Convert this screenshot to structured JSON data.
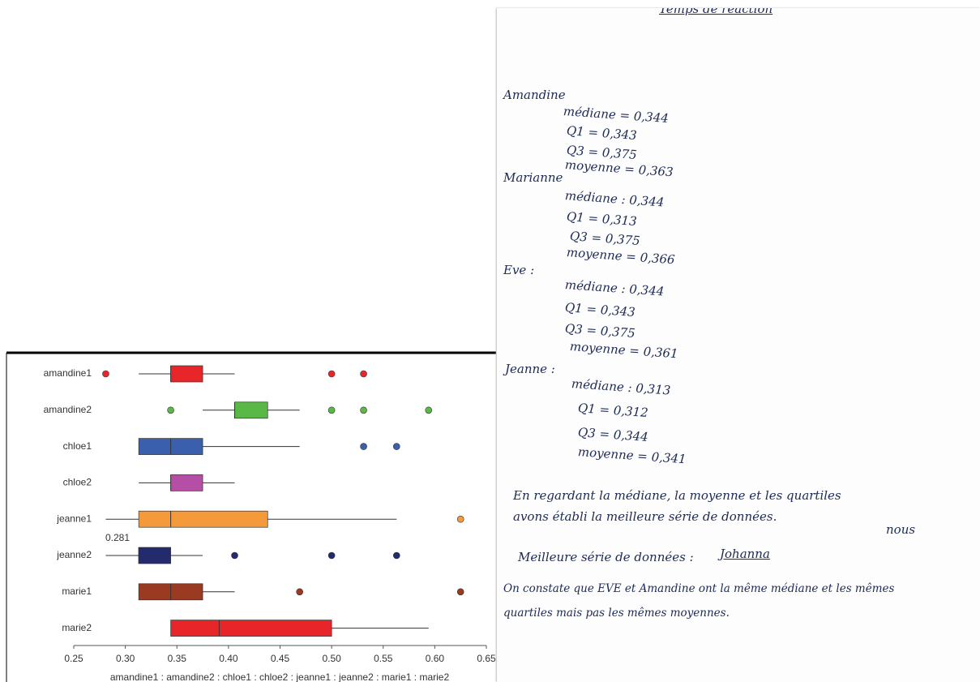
{
  "chart_data": {
    "type": "boxplot",
    "categories": [
      "amandine1",
      "amandine2",
      "chloe1",
      "chloe2",
      "jeanne1",
      "jeanne2",
      "marie1",
      "marie2"
    ],
    "boxes": [
      {
        "whislo": 0.313,
        "q1": 0.344,
        "med": 0.344,
        "q3": 0.375,
        "whishi": 0.406,
        "fliers": [
          0.281,
          0.5,
          0.531
        ],
        "color": "#e8262a"
      },
      {
        "whislo": 0.375,
        "q1": 0.406,
        "med": 0.406,
        "q3": 0.438,
        "whishi": 0.469,
        "fliers": [
          0.344,
          0.5,
          0.531,
          0.594
        ],
        "color": "#5ab946"
      },
      {
        "whislo": 0.313,
        "q1": 0.313,
        "med": 0.344,
        "q3": 0.375,
        "whishi": 0.469,
        "fliers": [
          0.531,
          0.563
        ],
        "color": "#3a5fad"
      },
      {
        "whislo": 0.313,
        "q1": 0.344,
        "med": 0.344,
        "q3": 0.375,
        "whishi": 0.406,
        "fliers": [],
        "color": "#b44fa5"
      },
      {
        "whislo": 0.281,
        "q1": 0.313,
        "med": 0.344,
        "q3": 0.438,
        "whishi": 0.563,
        "fliers": [
          0.625
        ],
        "color": "#f49a3a"
      },
      {
        "whislo": 0.281,
        "q1": 0.313,
        "med": 0.313,
        "q3": 0.344,
        "whishi": 0.375,
        "fliers": [
          0.406,
          0.5,
          0.563
        ],
        "color": "#232a6e"
      },
      {
        "whislo": 0.313,
        "q1": 0.313,
        "med": 0.344,
        "q3": 0.375,
        "whishi": 0.406,
        "fliers": [
          0.469,
          0.625
        ],
        "color": "#9b3a22"
      },
      {
        "whislo": 0.344,
        "q1": 0.344,
        "med": 0.391,
        "q3": 0.5,
        "whishi": 0.594,
        "fliers": [],
        "color": "#e8262a"
      }
    ],
    "annotation": "0.281",
    "xlim": [
      0.25,
      0.65
    ],
    "xticks": [
      0.25,
      {
        "value": 0.3,
        "label": "0.30"
      },
      0.35,
      {
        "value": 0.4,
        "label": "0.40"
      },
      0.45,
      {
        "value": 0.5,
        "label": "0.50"
      },
      0.55,
      {
        "value": 0.6,
        "label": "0.60"
      },
      0.65
    ],
    "x_label": "amandine1 : amandine2 : chloe1 : chloe2 : jeanne1 : jeanne2 : marie1 : marie2"
  },
  "notes": {
    "title": "Temps de reaction",
    "entries": [
      {
        "name": "Amandine",
        "lines": [
          "médiane = 0,344",
          "Q1 = 0,343",
          "Q3 = 0,375",
          "moyenne = 0,363"
        ]
      },
      {
        "name": "Marianne",
        "lines": [
          "médiane : 0,344",
          "Q1 = 0,313",
          "Q3 = 0,375",
          "moyenne = 0,366"
        ]
      },
      {
        "name": "Eve :",
        "lines": [
          "médiane : 0,344",
          "Q1 = 0,343",
          "Q3 = 0,375",
          "moyenne = 0,361"
        ]
      },
      {
        "name": "Jeanne :",
        "lines": [
          "médiane : 0,313",
          "Q1 = 0,312",
          "Q3 = 0,344",
          "moyenne = 0,341"
        ]
      }
    ],
    "paragraph": [
      "En regardant la médiane, la moyenne et les quartiles",
      "nous",
      "avons établi la meilleure série de données."
    ],
    "best_label": "Meilleure série de données :",
    "best": "Johanna",
    "conclusion": [
      "On constate que EVE et Amandine ont la même médiane et les mêmes",
      "quartiles mais pas les mêmes moyennes."
    ]
  }
}
